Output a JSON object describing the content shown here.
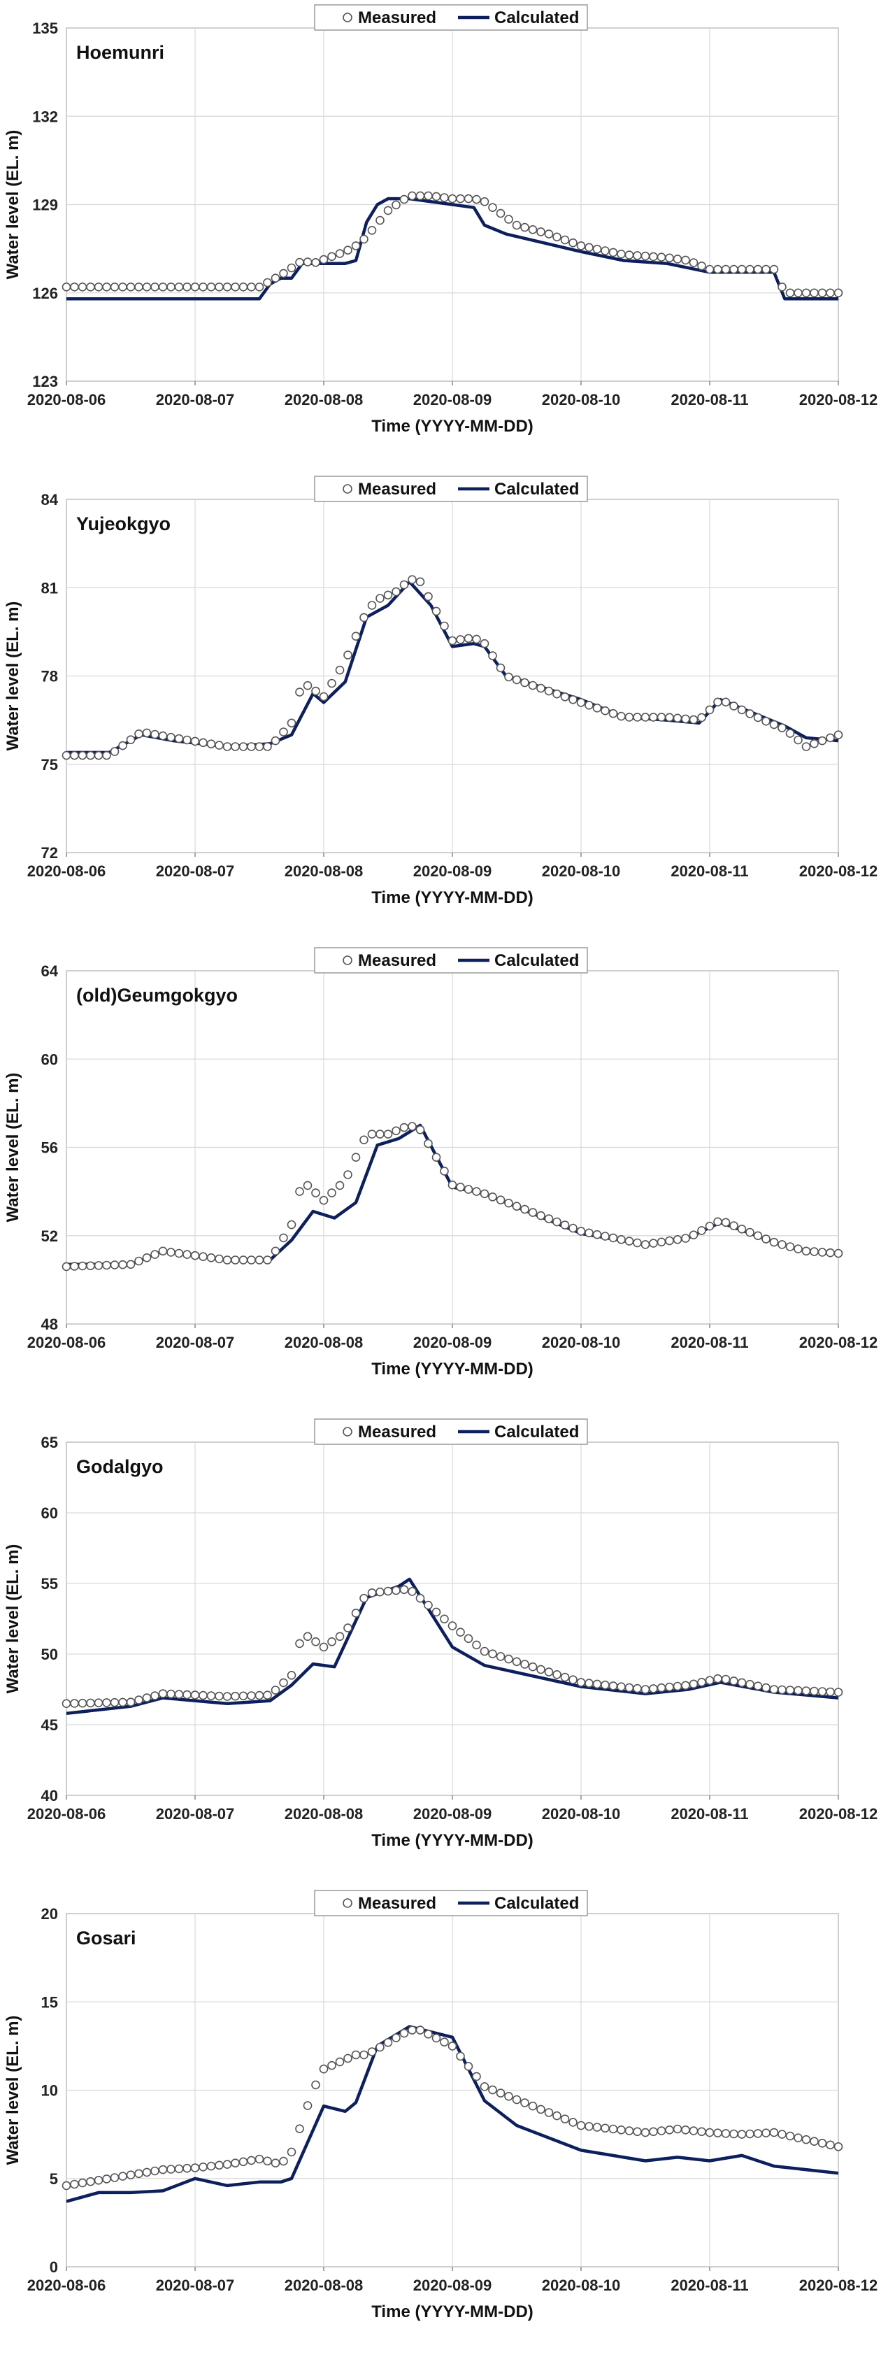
{
  "legend": {
    "measured": "Measured",
    "calculated": "Calculated"
  },
  "colors": {
    "calculated_line": "#0d1f5c",
    "measured_marker": "#555555",
    "grid": "#d9d9d9"
  },
  "chart_data": [
    {
      "type": "line",
      "title": "Hoemunri",
      "xlabel": "Time (YYYY-MM-DD)",
      "ylabel": "Water level (EL. m)",
      "x_tick_labels": [
        "2020-08-06",
        "2020-08-07",
        "2020-08-08",
        "2020-08-09",
        "2020-08-10",
        "2020-08-11",
        "2020-08-12"
      ],
      "xlim": [
        "2020-08-06",
        "2020-08-12"
      ],
      "ylim": [
        123,
        135
      ],
      "yticks": [
        123,
        126,
        129,
        132,
        135
      ],
      "grid": true,
      "legend_position": "top-center",
      "series": [
        {
          "name": "Measured",
          "marker": "open-circle",
          "x": [
            "2020-08-06 00:00",
            "2020-08-07 00:00",
            "2020-08-07 12:00",
            "2020-08-07 16:00",
            "2020-08-07 20:00",
            "2020-08-07 22:00",
            "2020-08-08 04:00",
            "2020-08-08 06:00",
            "2020-08-08 08:00",
            "2020-08-08 12:00",
            "2020-08-08 16:00",
            "2020-08-08 20:00",
            "2020-08-09 00:00",
            "2020-08-09 04:00",
            "2020-08-09 06:00",
            "2020-08-09 12:00",
            "2020-08-09 18:00",
            "2020-08-10 00:00",
            "2020-08-10 08:00",
            "2020-08-10 16:00",
            "2020-08-10 20:00",
            "2020-08-11 00:00",
            "2020-08-11 08:00",
            "2020-08-11 10:00",
            "2020-08-11 12:00",
            "2020-08-11 14:00",
            "2020-08-12 00:00"
          ],
          "y": [
            126.2,
            126.2,
            126.2,
            126.6,
            127.1,
            127.0,
            127.4,
            127.6,
            127.9,
            128.8,
            129.3,
            129.3,
            129.2,
            129.2,
            129.1,
            128.3,
            128.0,
            127.6,
            127.3,
            127.2,
            127.1,
            126.8,
            126.8,
            126.8,
            126.8,
            126.0,
            126.0
          ]
        },
        {
          "name": "Calculated",
          "marker": "line",
          "x": [
            "2020-08-06 00:00",
            "2020-08-07 12:00",
            "2020-08-07 14:00",
            "2020-08-07 16:00",
            "2020-08-07 18:00",
            "2020-08-07 20:00",
            "2020-08-08 04:00",
            "2020-08-08 06:00",
            "2020-08-08 08:00",
            "2020-08-08 10:00",
            "2020-08-08 12:00",
            "2020-08-08 16:00",
            "2020-08-09 00:00",
            "2020-08-09 04:00",
            "2020-08-09 06:00",
            "2020-08-09 10:00",
            "2020-08-10 00:00",
            "2020-08-10 08:00",
            "2020-08-10 16:00",
            "2020-08-11 00:00",
            "2020-08-11 12:00",
            "2020-08-11 14:00",
            "2020-08-12 00:00"
          ],
          "y": [
            125.8,
            125.8,
            126.3,
            126.5,
            126.5,
            127.0,
            127.0,
            127.1,
            128.4,
            129.0,
            129.2,
            129.2,
            129.0,
            128.9,
            128.3,
            128.0,
            127.4,
            127.1,
            127.0,
            126.7,
            126.7,
            125.8,
            125.8
          ]
        }
      ]
    },
    {
      "type": "line",
      "title": "Yujeokgyo",
      "xlabel": "Time (YYYY-MM-DD)",
      "ylabel": "Water level (EL. m)",
      "x_tick_labels": [
        "2020-08-06",
        "2020-08-07",
        "2020-08-08",
        "2020-08-09",
        "2020-08-10",
        "2020-08-11",
        "2020-08-12"
      ],
      "xlim": [
        "2020-08-06",
        "2020-08-12"
      ],
      "ylim": [
        72,
        84
      ],
      "yticks": [
        72,
        75,
        78,
        81,
        84
      ],
      "grid": true,
      "legend_position": "top-center",
      "series": [
        {
          "name": "Measured",
          "marker": "open-circle",
          "x": [
            "2020-08-06 00:00",
            "2020-08-06 08:00",
            "2020-08-06 14:00",
            "2020-08-06 20:00",
            "2020-08-07 06:00",
            "2020-08-07 14:00",
            "2020-08-07 18:00",
            "2020-08-07 20:00",
            "2020-08-08 00:00",
            "2020-08-08 04:00",
            "2020-08-08 08:00",
            "2020-08-08 10:00",
            "2020-08-08 14:00",
            "2020-08-08 16:00",
            "2020-08-08 18:00",
            "2020-08-09 00:00",
            "2020-08-09 04:00",
            "2020-08-09 06:00",
            "2020-08-09 10:00",
            "2020-08-10 00:00",
            "2020-08-10 08:00",
            "2020-08-10 16:00",
            "2020-08-10 22:00",
            "2020-08-11 02:00",
            "2020-08-11 10:00",
            "2020-08-11 14:00",
            "2020-08-11 18:00",
            "2020-08-12 00:00"
          ],
          "y": [
            75.3,
            75.3,
            76.1,
            75.9,
            75.6,
            75.6,
            76.4,
            77.8,
            77.3,
            78.5,
            80.2,
            80.6,
            80.9,
            81.3,
            81.2,
            79.2,
            79.3,
            79.1,
            78.0,
            77.1,
            76.6,
            76.6,
            76.5,
            77.2,
            76.5,
            76.2,
            75.6,
            76.0
          ]
        },
        {
          "name": "Calculated",
          "marker": "line",
          "x": [
            "2020-08-06 00:00",
            "2020-08-06 08:00",
            "2020-08-06 14:00",
            "2020-08-06 20:00",
            "2020-08-07 06:00",
            "2020-08-07 14:00",
            "2020-08-07 18:00",
            "2020-08-07 22:00",
            "2020-08-08 00:00",
            "2020-08-08 04:00",
            "2020-08-08 08:00",
            "2020-08-08 12:00",
            "2020-08-08 16:00",
            "2020-08-08 20:00",
            "2020-08-09 00:00",
            "2020-08-09 04:00",
            "2020-08-09 06:00",
            "2020-08-09 10:00",
            "2020-08-10 00:00",
            "2020-08-10 08:00",
            "2020-08-10 16:00",
            "2020-08-10 22:00",
            "2020-08-11 02:00",
            "2020-08-11 10:00",
            "2020-08-11 14:00",
            "2020-08-11 18:00",
            "2020-08-12 00:00"
          ],
          "y": [
            75.4,
            75.4,
            76.0,
            75.8,
            75.6,
            75.7,
            76.0,
            77.4,
            77.1,
            77.8,
            80.0,
            80.4,
            81.2,
            80.4,
            79.0,
            79.1,
            79.0,
            78.0,
            77.2,
            76.6,
            76.5,
            76.4,
            77.2,
            76.6,
            76.3,
            75.9,
            75.8
          ]
        }
      ]
    },
    {
      "type": "line",
      "title": "(old)Geumgokgyo",
      "xlabel": "Time (YYYY-MM-DD)",
      "ylabel": "Water level (EL. m)",
      "x_tick_labels": [
        "2020-08-06",
        "2020-08-07",
        "2020-08-08",
        "2020-08-09",
        "2020-08-10",
        "2020-08-11",
        "2020-08-12"
      ],
      "xlim": [
        "2020-08-06",
        "2020-08-12"
      ],
      "ylim": [
        48,
        64
      ],
      "yticks": [
        48,
        52,
        56,
        60,
        64
      ],
      "grid": true,
      "legend_position": "top-center",
      "series": [
        {
          "name": "Measured",
          "marker": "open-circle",
          "x": [
            "2020-08-06 00:00",
            "2020-08-06 12:00",
            "2020-08-06 18:00",
            "2020-08-07 06:00",
            "2020-08-07 14:00",
            "2020-08-07 18:00",
            "2020-08-07 20:00",
            "2020-08-08 00:00",
            "2020-08-08 04:00",
            "2020-08-08 08:00",
            "2020-08-08 12:00",
            "2020-08-08 16:00",
            "2020-08-08 18:00",
            "2020-08-09 00:00",
            "2020-08-09 06:00",
            "2020-08-10 00:00",
            "2020-08-10 12:00",
            "2020-08-10 20:00",
            "2020-08-11 02:00",
            "2020-08-11 12:00",
            "2020-08-11 18:00",
            "2020-08-12 00:00"
          ],
          "y": [
            50.6,
            50.7,
            51.3,
            50.9,
            50.9,
            52.5,
            54.5,
            53.6,
            54.5,
            56.6,
            56.6,
            57.0,
            56.8,
            54.3,
            53.9,
            52.2,
            51.6,
            51.9,
            52.7,
            51.7,
            51.3,
            51.2
          ]
        },
        {
          "name": "Calculated",
          "marker": "line",
          "x": [
            "2020-08-06 00:00",
            "2020-08-06 12:00",
            "2020-08-06 18:00",
            "2020-08-07 06:00",
            "2020-08-07 14:00",
            "2020-08-07 18:00",
            "2020-08-07 22:00",
            "2020-08-08 02:00",
            "2020-08-08 06:00",
            "2020-08-08 10:00",
            "2020-08-08 14:00",
            "2020-08-08 18:00",
            "2020-08-09 00:00",
            "2020-08-09 06:00",
            "2020-08-10 00:00",
            "2020-08-10 12:00",
            "2020-08-10 20:00",
            "2020-08-11 02:00",
            "2020-08-11 12:00",
            "2020-08-11 18:00",
            "2020-08-12 00:00"
          ],
          "y": [
            50.7,
            50.7,
            51.3,
            50.9,
            50.9,
            51.8,
            53.1,
            52.8,
            53.5,
            56.1,
            56.4,
            57.0,
            54.2,
            53.9,
            52.1,
            51.6,
            51.9,
            52.6,
            51.7,
            51.3,
            51.2
          ]
        }
      ]
    },
    {
      "type": "line",
      "title": "Godalgyo",
      "xlabel": "Time (YYYY-MM-DD)",
      "ylabel": "Water level (EL. m)",
      "x_tick_labels": [
        "2020-08-06",
        "2020-08-07",
        "2020-08-08",
        "2020-08-09",
        "2020-08-10",
        "2020-08-11",
        "2020-08-12"
      ],
      "xlim": [
        "2020-08-06",
        "2020-08-12"
      ],
      "ylim": [
        40,
        65
      ],
      "yticks": [
        40,
        45,
        50,
        55,
        60,
        65
      ],
      "grid": true,
      "legend_position": "top-center",
      "series": [
        {
          "name": "Measured",
          "marker": "open-circle",
          "x": [
            "2020-08-06 00:00",
            "2020-08-06 12:00",
            "2020-08-06 18:00",
            "2020-08-07 06:00",
            "2020-08-07 14:00",
            "2020-08-07 18:00",
            "2020-08-07 20:00",
            "2020-08-08 00:00",
            "2020-08-08 04:00",
            "2020-08-08 08:00",
            "2020-08-08 16:00",
            "2020-08-09 00:00",
            "2020-08-09 06:00",
            "2020-08-10 00:00",
            "2020-08-10 12:00",
            "2020-08-10 20:00",
            "2020-08-11 02:00",
            "2020-08-11 12:00",
            "2020-08-12 00:00"
          ],
          "y": [
            46.5,
            46.6,
            47.2,
            47.0,
            47.1,
            48.5,
            51.5,
            50.5,
            51.5,
            54.3,
            54.6,
            52.0,
            50.2,
            48.0,
            47.5,
            47.8,
            48.3,
            47.5,
            47.3
          ]
        },
        {
          "name": "Calculated",
          "marker": "line",
          "x": [
            "2020-08-06 00:00",
            "2020-08-06 12:00",
            "2020-08-06 18:00",
            "2020-08-07 06:00",
            "2020-08-07 14:00",
            "2020-08-07 18:00",
            "2020-08-07 22:00",
            "2020-08-08 02:00",
            "2020-08-08 08:00",
            "2020-08-08 14:00",
            "2020-08-08 16:00",
            "2020-08-09 00:00",
            "2020-08-09 06:00",
            "2020-08-10 00:00",
            "2020-08-10 12:00",
            "2020-08-10 20:00",
            "2020-08-11 02:00",
            "2020-08-11 12:00",
            "2020-08-12 00:00"
          ],
          "y": [
            45.8,
            46.3,
            46.9,
            46.5,
            46.7,
            47.8,
            49.3,
            49.1,
            54.0,
            54.8,
            55.3,
            50.5,
            49.2,
            47.7,
            47.2,
            47.5,
            48.0,
            47.3,
            46.9
          ]
        }
      ]
    },
    {
      "type": "line",
      "title": "Gosari",
      "xlabel": "Time (YYYY-MM-DD)",
      "ylabel": "Water level (EL. m)",
      "x_tick_labels": [
        "2020-08-06",
        "2020-08-07",
        "2020-08-08",
        "2020-08-09",
        "2020-08-10",
        "2020-08-11",
        "2020-08-12"
      ],
      "xlim": [
        "2020-08-06",
        "2020-08-12"
      ],
      "ylim": [
        0,
        20
      ],
      "yticks": [
        0,
        5,
        10,
        15,
        20
      ],
      "grid": true,
      "legend_position": "top-center",
      "series": [
        {
          "name": "Measured",
          "marker": "open-circle",
          "x": [
            "2020-08-06 00:00",
            "2020-08-06 12:00",
            "2020-08-06 18:00",
            "2020-08-07 00:00",
            "2020-08-07 06:00",
            "2020-08-07 12:00",
            "2020-08-07 16:00",
            "2020-08-07 18:00",
            "2020-08-07 22:00",
            "2020-08-08 00:00",
            "2020-08-08 06:00",
            "2020-08-08 08:00",
            "2020-08-08 16:00",
            "2020-08-08 18:00",
            "2020-08-09 00:00",
            "2020-08-09 06:00",
            "2020-08-10 00:00",
            "2020-08-10 12:00",
            "2020-08-10 18:00",
            "2020-08-11 00:00",
            "2020-08-11 06:00",
            "2020-08-11 12:00",
            "2020-08-12 00:00"
          ],
          "y": [
            4.6,
            5.2,
            5.5,
            5.6,
            5.8,
            6.1,
            5.8,
            6.5,
            10.0,
            11.2,
            12.0,
            12.0,
            13.4,
            13.4,
            12.5,
            10.2,
            8.0,
            7.6,
            7.8,
            7.6,
            7.5,
            7.6,
            6.8
          ]
        },
        {
          "name": "Calculated",
          "marker": "line",
          "x": [
            "2020-08-06 00:00",
            "2020-08-06 06:00",
            "2020-08-06 12:00",
            "2020-08-06 18:00",
            "2020-08-07 00:00",
            "2020-08-07 06:00",
            "2020-08-07 12:00",
            "2020-08-07 16:00",
            "2020-08-07 18:00",
            "2020-08-08 00:00",
            "2020-08-08 04:00",
            "2020-08-08 06:00",
            "2020-08-08 10:00",
            "2020-08-08 16:00",
            "2020-08-09 00:00",
            "2020-08-09 06:00",
            "2020-08-09 12:00",
            "2020-08-10 00:00",
            "2020-08-10 12:00",
            "2020-08-10 18:00",
            "2020-08-11 00:00",
            "2020-08-11 06:00",
            "2020-08-11 12:00",
            "2020-08-12 00:00"
          ],
          "y": [
            3.7,
            4.2,
            4.2,
            4.3,
            5.0,
            4.6,
            4.8,
            4.8,
            5.0,
            9.1,
            8.8,
            9.3,
            12.5,
            13.6,
            13.0,
            9.4,
            8.0,
            6.6,
            6.0,
            6.2,
            6.0,
            6.3,
            5.7,
            5.3
          ]
        }
      ]
    }
  ]
}
